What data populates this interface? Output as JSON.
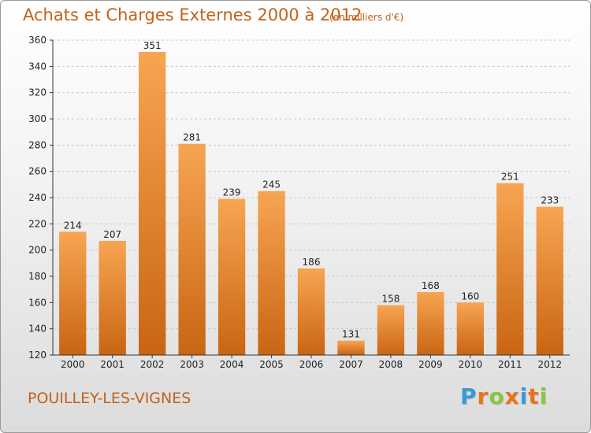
{
  "title": "Achats et Charges Externes 2000 à 2012",
  "subtitle": "(en milliers d'€)",
  "commune": "POUILLEY-LES-VIGNES",
  "logo": {
    "text": "Proxiti",
    "colors": [
      "#3a9ad9",
      "#e8731d",
      "#8bc53f",
      "#e8731d",
      "#3a9ad9",
      "#e8731d",
      "#8bc53f"
    ]
  },
  "colors": {
    "bar_light": "#f7a552",
    "bar_dark": "#c96512",
    "axis": "#333333",
    "grid": "#c8c8c8",
    "title": "#c2621a"
  },
  "chart_data": {
    "type": "bar",
    "title": "Achats et Charges Externes 2000 à 2012",
    "subtitle": "(en milliers d'€)",
    "categories": [
      "2000",
      "2001",
      "2002",
      "2003",
      "2004",
      "2005",
      "2006",
      "2007",
      "2008",
      "2009",
      "2010",
      "2011",
      "2012"
    ],
    "values": [
      214,
      207,
      351,
      281,
      239,
      245,
      186,
      131,
      158,
      168,
      160,
      251,
      233
    ],
    "ylim": [
      120,
      360
    ],
    "yticks": [
      120,
      140,
      160,
      180,
      200,
      220,
      240,
      260,
      280,
      300,
      320,
      340,
      360
    ],
    "grid": "horizontal dashed",
    "legend": "none",
    "data_labels": true
  }
}
